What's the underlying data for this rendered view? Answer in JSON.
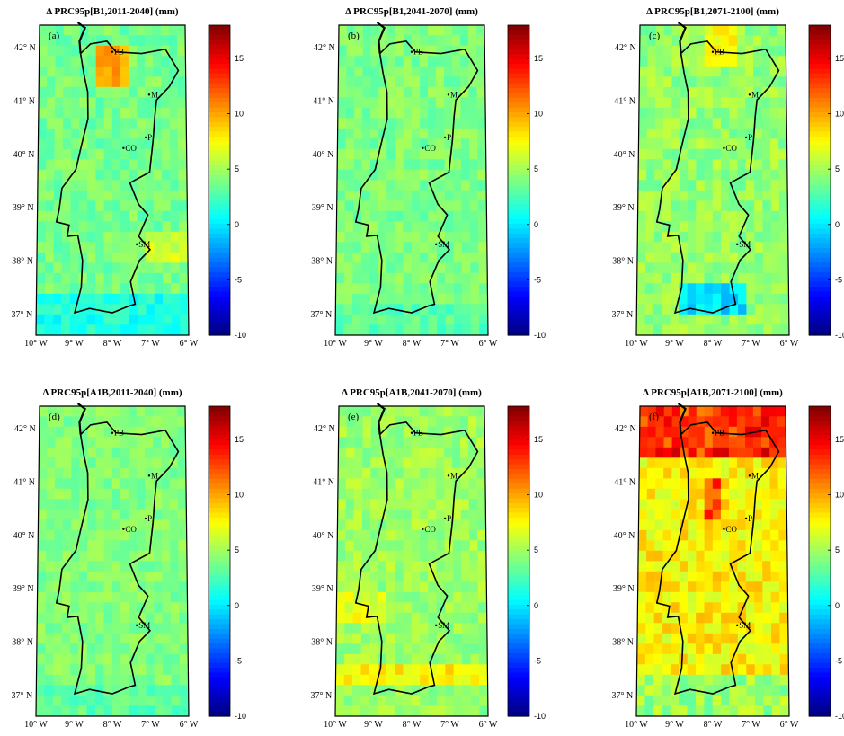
{
  "panels": [
    {
      "id": "a",
      "letter": "(a)",
      "title": "Δ PRC95p[B1,2011-2040] (mm)",
      "field": "B1_2011"
    },
    {
      "id": "b",
      "letter": "(b)",
      "title": "Δ PRC95p[B1,2041-2070] (mm)",
      "field": "B1_2041"
    },
    {
      "id": "c",
      "letter": "(c)",
      "title": "Δ PRC95p[B1,2071-2100] (mm)",
      "field": "B1_2071"
    },
    {
      "id": "d",
      "letter": "(d)",
      "title": "Δ PRC95p[A1B,2011-2040] (mm)",
      "field": "A1B_2011"
    },
    {
      "id": "e",
      "letter": "(e)",
      "title": "Δ PRC95p[A1B,2041-2070] (mm)",
      "field": "A1B_2041"
    },
    {
      "id": "f",
      "letter": "(f)",
      "title": "Δ PRC95p[A1B,2071-2100] (mm)",
      "field": "A1B_2071"
    }
  ],
  "map": {
    "lon_ticks": [
      "10° W",
      "9° W",
      "8° W",
      "7° W",
      "6° W"
    ],
    "lat_ticks": [
      "42° N",
      "41° N",
      "40° N",
      "39° N",
      "38° N",
      "37° N"
    ],
    "lon_range": [
      -10,
      -6
    ],
    "lat_range": [
      36.6,
      42.4
    ],
    "cities": [
      {
        "label": "PB",
        "lon": -8.0,
        "lat": 41.9
      },
      {
        "label": "M",
        "lon": -7.0,
        "lat": 41.1
      },
      {
        "label": "P",
        "lon": -7.1,
        "lat": 40.3
      },
      {
        "label": "CO",
        "lon": -7.7,
        "lat": 40.1
      },
      {
        "label": "SM",
        "lon": -7.35,
        "lat": 38.3
      }
    ]
  },
  "colorbar": {
    "min": -10,
    "max": 18,
    "ticks": [
      "15",
      "10",
      "5",
      "0",
      "-5",
      "-10"
    ],
    "tick_values": [
      15,
      10,
      5,
      0,
      -5,
      -10
    ],
    "colormap": "jet"
  },
  "colors": {
    "coastline": "#000000",
    "background": "#ffffff"
  }
}
